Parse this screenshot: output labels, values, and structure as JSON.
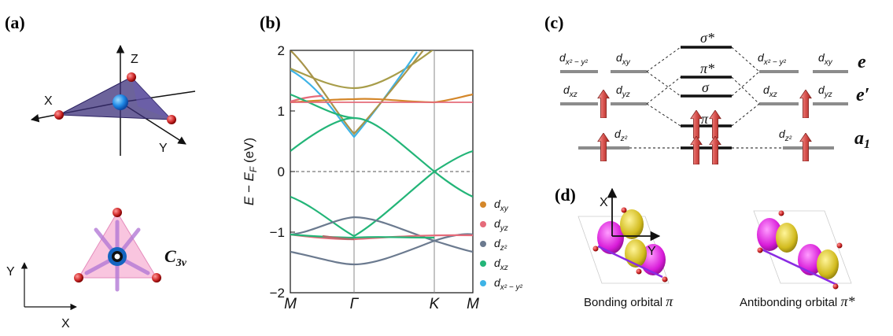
{
  "panels": {
    "a": "(a)",
    "b": "(b)",
    "c": "(c)",
    "d": "(d)"
  },
  "panel_a": {
    "axes_3d": {
      "z": "Z",
      "x": "X",
      "y": "Y"
    },
    "symmetry_label": "C",
    "symmetry_sub": "3v",
    "axes_2d": {
      "y": "Y",
      "x": "X"
    },
    "colors": {
      "metal": "#1e88e5",
      "ligand": "#d32f2f",
      "tetra": "#3b2f7a",
      "triangle": "#f8bbd9"
    }
  },
  "panel_b": {
    "ylabel": "E − E_F (eV)",
    "ylabel_parts": {
      "pre": "E − E",
      "sub": "F",
      "post": " (eV)"
    },
    "kpoints": [
      "M",
      "Γ",
      "K",
      "M"
    ],
    "yticks": [
      "−2",
      "−1",
      "0",
      "1",
      "2"
    ],
    "legend": [
      {
        "main": "d",
        "sub": "xy",
        "color": "#d4872a"
      },
      {
        "main": "d",
        "sub": "yz",
        "color": "#e56b7a"
      },
      {
        "main": "d",
        "sub": "z²",
        "color": "#6b7a8f"
      },
      {
        "main": "d",
        "sub": "xz",
        "color": "#23b578"
      },
      {
        "main": "d",
        "sub": "x² − y²",
        "color": "#3eb3e6"
      }
    ]
  },
  "panel_c": {
    "left_orbitals": {
      "dx2y2": {
        "main": "d",
        "sub": "x² − y²"
      },
      "dxy": {
        "main": "d",
        "sub": "xy"
      },
      "dxz": {
        "main": "d",
        "sub": "xz"
      },
      "dyz": {
        "main": "d",
        "sub": "yz"
      },
      "dz2": {
        "main": "d",
        "sub": "z²"
      }
    },
    "right_orbitals": {
      "dx2y2": {
        "main": "d",
        "sub": "x² − y²"
      },
      "dxy": {
        "main": "d",
        "sub": "xy"
      },
      "dxz": {
        "main": "d",
        "sub": "xz"
      },
      "dyz": {
        "main": "d",
        "sub": "yz"
      },
      "dz2": {
        "main": "d",
        "sub": "z²"
      }
    },
    "center_levels": {
      "sigma_star": "σ*",
      "pi_star": "π*",
      "sigma": "σ",
      "pi": "π"
    },
    "irreps": {
      "e": "e",
      "e_prime": "e′",
      "a1": "a",
      "a1_sub": "1"
    },
    "colors": {
      "arrow": "#d9534f",
      "level": "#8c8c8c"
    }
  },
  "panel_d": {
    "axes": {
      "x": "X",
      "y": "Y"
    },
    "bonding": {
      "text": "Bonding orbital ",
      "symbol": "π"
    },
    "antibonding": {
      "text": "Antibonding orbital ",
      "symbol": "π*"
    },
    "colors": {
      "lobe_a": "#e020e0",
      "lobe_b": "#d6c020"
    }
  }
}
